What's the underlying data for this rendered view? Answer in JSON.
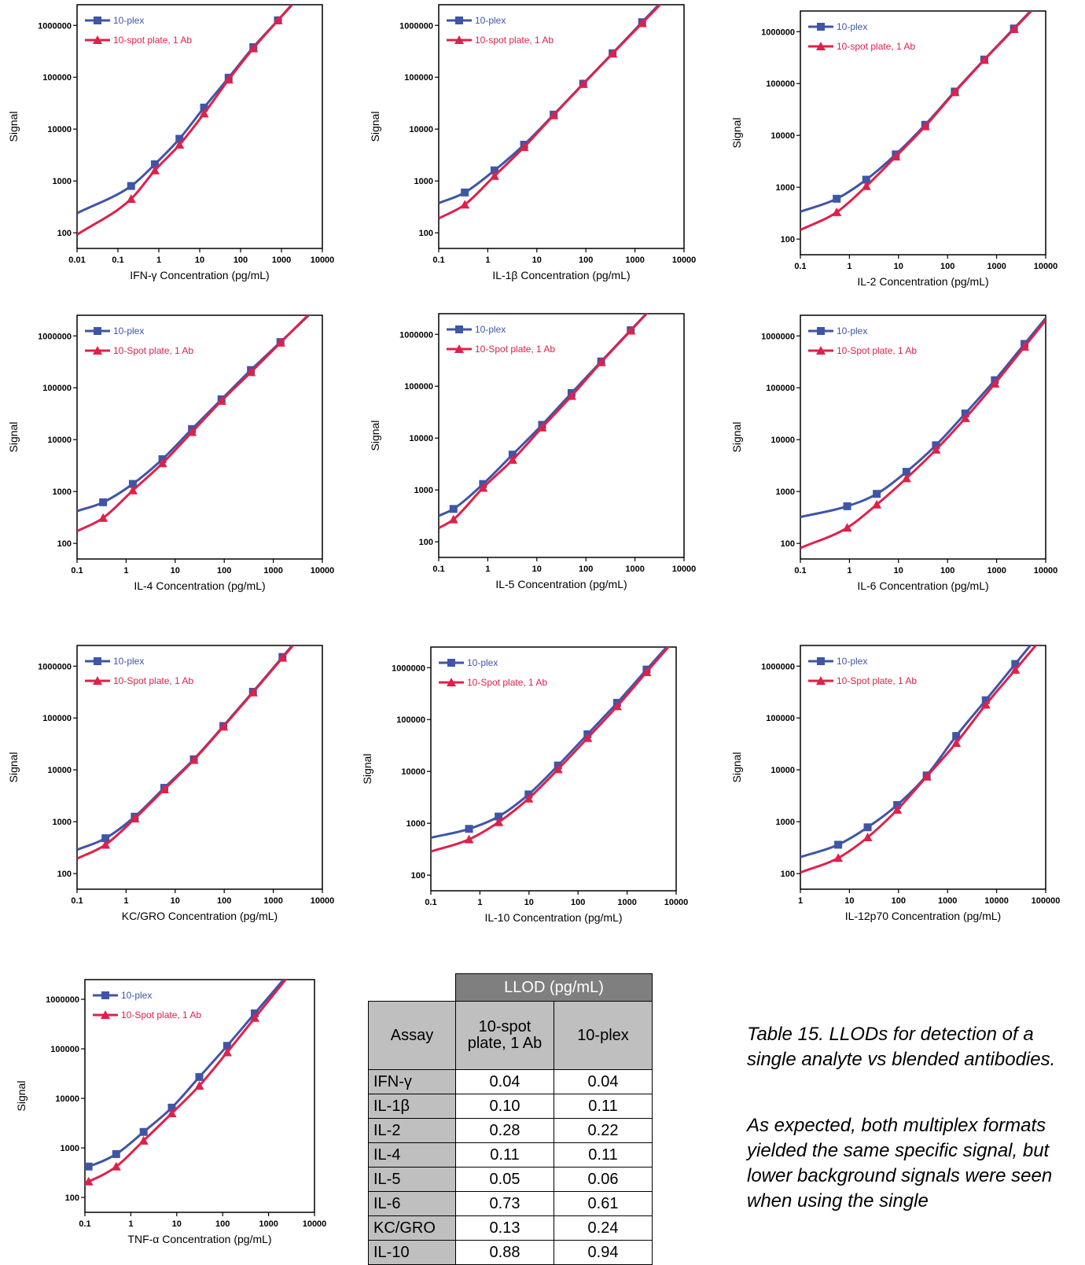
{
  "colors": {
    "multiplex": "#3f55a6",
    "single": "#e0204a"
  },
  "chart_data": [
    {
      "type": "line",
      "xlabel": "IFN-γ Concentration (pg/mL)",
      "ylabel": "Signal",
      "xscale": "log",
      "yscale": "log",
      "xlim": [
        0.01,
        10000
      ],
      "ylim": [
        50,
        2500000
      ],
      "xticks": [
        "0.01",
        "0.1",
        "1",
        "10",
        "100",
        "1000",
        "10000"
      ],
      "yticks": [
        "100",
        "1000",
        "10000",
        "100000",
        "1000000"
      ],
      "legend_position": "top-left",
      "series": [
        {
          "name": "10-plex",
          "x": [
            0.21,
            0.8,
            3.2,
            12.8,
            51,
            205,
            820
          ],
          "y": [
            800,
            2100,
            6500,
            26000,
            98000,
            380000,
            1250000
          ]
        },
        {
          "name": "10-spot plate, 1 Ab",
          "x": [
            0.21,
            0.8,
            3.2,
            12.8,
            51,
            205,
            820
          ],
          "y": [
            450,
            1600,
            5000,
            20000,
            90000,
            360000,
            1250000
          ]
        }
      ]
    },
    {
      "type": "line",
      "xlabel": "IL-1β Concentration (pg/mL)",
      "ylabel": "Signal",
      "xscale": "log",
      "yscale": "log",
      "xlim": [
        0.1,
        10000
      ],
      "ylim": [
        50,
        2500000
      ],
      "xticks": [
        "0.1",
        "1",
        "10",
        "100",
        "1000",
        "10000"
      ],
      "yticks": [
        "100",
        "1000",
        "10000",
        "100000",
        "1000000"
      ],
      "legend_position": "top-left",
      "series": [
        {
          "name": "10-plex",
          "x": [
            0.34,
            1.37,
            5.5,
            22,
            88,
            350,
            1400
          ],
          "y": [
            600,
            1600,
            5000,
            19000,
            75000,
            290000,
            1150000
          ]
        },
        {
          "name": "10-spot plate, 1 Ab",
          "x": [
            0.34,
            1.37,
            5.5,
            22,
            88,
            350,
            1400
          ],
          "y": [
            350,
            1250,
            4500,
            18500,
            74000,
            285000,
            1100000
          ]
        }
      ]
    },
    {
      "type": "line",
      "xlabel": "IL-2 Concentration (pg/mL)",
      "ylabel": "Signal",
      "xscale": "log",
      "yscale": "log",
      "xlim": [
        0.1,
        10000
      ],
      "ylim": [
        50,
        2500000
      ],
      "xticks": [
        "0.1",
        "1",
        "10",
        "100",
        "1000",
        "10000"
      ],
      "yticks": [
        "100",
        "1000",
        "10000",
        "100000",
        "1000000"
      ],
      "legend_position": "top-left",
      "series": [
        {
          "name": "10-plex",
          "x": [
            0.55,
            2.2,
            8.8,
            35,
            140,
            560,
            2250
          ],
          "y": [
            600,
            1400,
            4300,
            16000,
            70000,
            290000,
            1150000
          ]
        },
        {
          "name": "10-spot plate, 1 Ab",
          "x": [
            0.55,
            2.2,
            8.8,
            35,
            140,
            560,
            2250
          ],
          "y": [
            330,
            1050,
            3900,
            15000,
            68000,
            285000,
            1120000
          ]
        }
      ]
    },
    {
      "type": "line",
      "xlabel": "IL-4 Concentration (pg/mL)",
      "ylabel": "Signal",
      "xscale": "log",
      "yscale": "log",
      "xlim": [
        0.1,
        10000
      ],
      "ylim": [
        50,
        2500000
      ],
      "xticks": [
        "0.1",
        "1",
        "10",
        "100",
        "1000",
        "10000"
      ],
      "yticks": [
        "100",
        "1000",
        "10000",
        "100000",
        "1000000"
      ],
      "legend_position": "top-left",
      "series": [
        {
          "name": "10-plex",
          "x": [
            0.34,
            1.37,
            5.5,
            22,
            88,
            350,
            1400
          ],
          "y": [
            620,
            1400,
            4200,
            16000,
            60000,
            220000,
            760000
          ]
        },
        {
          "name": "10-Spot plate, 1 Ab",
          "x": [
            0.34,
            1.37,
            5.5,
            22,
            88,
            350,
            1400
          ],
          "y": [
            310,
            1050,
            3500,
            14000,
            56000,
            200000,
            740000
          ]
        }
      ]
    },
    {
      "type": "line",
      "xlabel": "IL-5 Concentration (pg/mL)",
      "ylabel": "Signal",
      "xscale": "log",
      "yscale": "log",
      "xlim": [
        0.1,
        10000
      ],
      "ylim": [
        50,
        2500000
      ],
      "xticks": [
        "0.1",
        "1",
        "10",
        "100",
        "1000",
        "10000"
      ],
      "yticks": [
        "100",
        "1000",
        "10000",
        "100000",
        "1000000"
      ],
      "legend_position": "top-left",
      "series": [
        {
          "name": "10-plex",
          "x": [
            0.2,
            0.8,
            3.2,
            12.8,
            51,
            205,
            820
          ],
          "y": [
            430,
            1300,
            4800,
            18000,
            74000,
            300000,
            1200000
          ]
        },
        {
          "name": "10-Spot plate, 1 Ab",
          "x": [
            0.2,
            0.8,
            3.2,
            12.8,
            51,
            205,
            820
          ],
          "y": [
            270,
            1100,
            3800,
            16000,
            65000,
            290000,
            1180000
          ]
        }
      ]
    },
    {
      "type": "line",
      "xlabel": "IL-6 Concentration (pg/mL)",
      "ylabel": "Signal",
      "xscale": "log",
      "yscale": "log",
      "xlim": [
        0.1,
        10000
      ],
      "ylim": [
        50,
        2500000
      ],
      "xticks": [
        "0.1",
        "1",
        "10",
        "100",
        "1000",
        "10000"
      ],
      "yticks": [
        "100",
        "1000",
        "10000",
        "100000",
        "1000000"
      ],
      "legend_position": "top-left",
      "series": [
        {
          "name": "10-plex",
          "x": [
            0.9,
            3.6,
            14.5,
            58,
            230,
            920,
            3700
          ],
          "y": [
            520,
            900,
            2400,
            7800,
            32000,
            140000,
            700000
          ]
        },
        {
          "name": "10-Spot plate, 1 Ab",
          "x": [
            0.9,
            3.6,
            14.5,
            58,
            230,
            920,
            3700
          ],
          "y": [
            200,
            560,
            1800,
            6400,
            26000,
            120000,
            620000
          ]
        }
      ]
    },
    {
      "type": "line",
      "xlabel": "KC/GRO Concentration (pg/mL)",
      "ylabel": "Signal",
      "xscale": "log",
      "yscale": "log",
      "xlim": [
        0.1,
        10000
      ],
      "ylim": [
        50,
        2500000
      ],
      "xticks": [
        "0.1",
        "1",
        "10",
        "100",
        "1000",
        "10000"
      ],
      "yticks": [
        "100",
        "1000",
        "10000",
        "100000",
        "1000000"
      ],
      "legend_position": "top-left",
      "series": [
        {
          "name": "10-plex",
          "x": [
            0.38,
            1.5,
            6,
            24,
            96,
            385,
            1540
          ],
          "y": [
            480,
            1250,
            4500,
            16000,
            70000,
            320000,
            1500000
          ]
        },
        {
          "name": "10-Spot plate, 1 Ab",
          "x": [
            0.38,
            1.5,
            6,
            24,
            96,
            385,
            1540
          ],
          "y": [
            360,
            1150,
            4200,
            15500,
            68000,
            310000,
            1450000
          ]
        }
      ]
    },
    {
      "type": "line",
      "xlabel": "IL-10 Concentration (pg/mL)",
      "ylabel": "Signal",
      "xscale": "log",
      "yscale": "log",
      "xlim": [
        0.1,
        10000
      ],
      "ylim": [
        50,
        2500000
      ],
      "xticks": [
        "0.1",
        "1",
        "10",
        "100",
        "1000",
        "10000"
      ],
      "yticks": [
        "100",
        "1000",
        "10000",
        "100000",
        "1000000"
      ],
      "legend_position": "top-left",
      "series": [
        {
          "name": "10-plex",
          "x": [
            0.6,
            2.4,
            9.8,
            39,
            156,
            625,
            2500
          ],
          "y": [
            780,
            1350,
            3600,
            13000,
            52000,
            210000,
            920000
          ]
        },
        {
          "name": "10-Spot plate, 1 Ab",
          "x": [
            0.6,
            2.4,
            9.8,
            39,
            156,
            625,
            2500
          ],
          "y": [
            490,
            1050,
            3000,
            11000,
            44000,
            180000,
            820000
          ]
        }
      ]
    },
    {
      "type": "line",
      "xlabel": "IL-12p70 Concentration (pg/mL)",
      "ylabel": "Signal",
      "xscale": "log",
      "yscale": "log",
      "xlim": [
        1,
        100000
      ],
      "ylim": [
        50,
        2500000
      ],
      "xticks": [
        "1",
        "10",
        "100",
        "1000",
        "10000",
        "100000"
      ],
      "yticks": [
        "100",
        "1000",
        "10000",
        "100000",
        "1000000"
      ],
      "legend_position": "top-left",
      "series": [
        {
          "name": "10-plex",
          "x": [
            5.9,
            23.5,
            94,
            375,
            1500,
            6000,
            24000
          ],
          "y": [
            360,
            780,
            2100,
            7800,
            45000,
            220000,
            1100000
          ]
        },
        {
          "name": "10-Spot plate, 1 Ab",
          "x": [
            5.9,
            23.5,
            94,
            375,
            1500,
            6000,
            24000
          ],
          "y": [
            200,
            500,
            1700,
            7400,
            33000,
            180000,
            850000
          ]
        }
      ]
    },
    {
      "type": "line",
      "xlabel": "TNF-α Concentration (pg/mL)",
      "ylabel": "Signal",
      "xscale": "log",
      "yscale": "log",
      "xlim": [
        0.1,
        10000
      ],
      "ylim": [
        50,
        2500000
      ],
      "xticks": [
        "0.1",
        "1",
        "10",
        "100",
        "1000",
        "10000"
      ],
      "yticks": [
        "100",
        "1000",
        "10000",
        "100000",
        "1000000"
      ],
      "legend_position": "top-left",
      "series": [
        {
          "name": "10-plex",
          "x": [
            0.12,
            0.48,
            1.9,
            7.8,
            31,
            125,
            500
          ],
          "y": [
            420,
            750,
            2100,
            6500,
            27000,
            115000,
            520000
          ]
        },
        {
          "name": "10-Spot plate, 1 Ab",
          "x": [
            0.12,
            0.48,
            1.9,
            7.8,
            31,
            125,
            500
          ],
          "y": [
            210,
            420,
            1400,
            5000,
            18000,
            85000,
            420000
          ]
        }
      ]
    }
  ],
  "table": {
    "header_group": "LLOD (pg/mL)",
    "col_assay": "Assay",
    "col_single": "10-spot plate, 1 Ab",
    "col_multiplex": "10-plex",
    "rows": [
      {
        "assay": "IFN-γ",
        "single": "0.04",
        "multiplex": "0.04"
      },
      {
        "assay": "IL-1β",
        "single": "0.10",
        "multiplex": "0.11"
      },
      {
        "assay": "IL-2",
        "single": "0.28",
        "multiplex": "0.22"
      },
      {
        "assay": "IL-4",
        "single": "0.11",
        "multiplex": "0.11"
      },
      {
        "assay": "IL-5",
        "single": "0.05",
        "multiplex": "0.06"
      },
      {
        "assay": "IL-6",
        "single": "0.73",
        "multiplex": "0.61"
      },
      {
        "assay": "KC/GRO",
        "single": "0.13",
        "multiplex": "0.24"
      },
      {
        "assay": "IL-10",
        "single": "0.88",
        "multiplex": "0.94"
      }
    ]
  },
  "caption": {
    "title": "Table 15. LLODs for detection of a single analyte vs blended antibodies.",
    "body": "As expected, both multiplex formats yielded the same specific signal, but lower background signals were seen when using the single"
  }
}
